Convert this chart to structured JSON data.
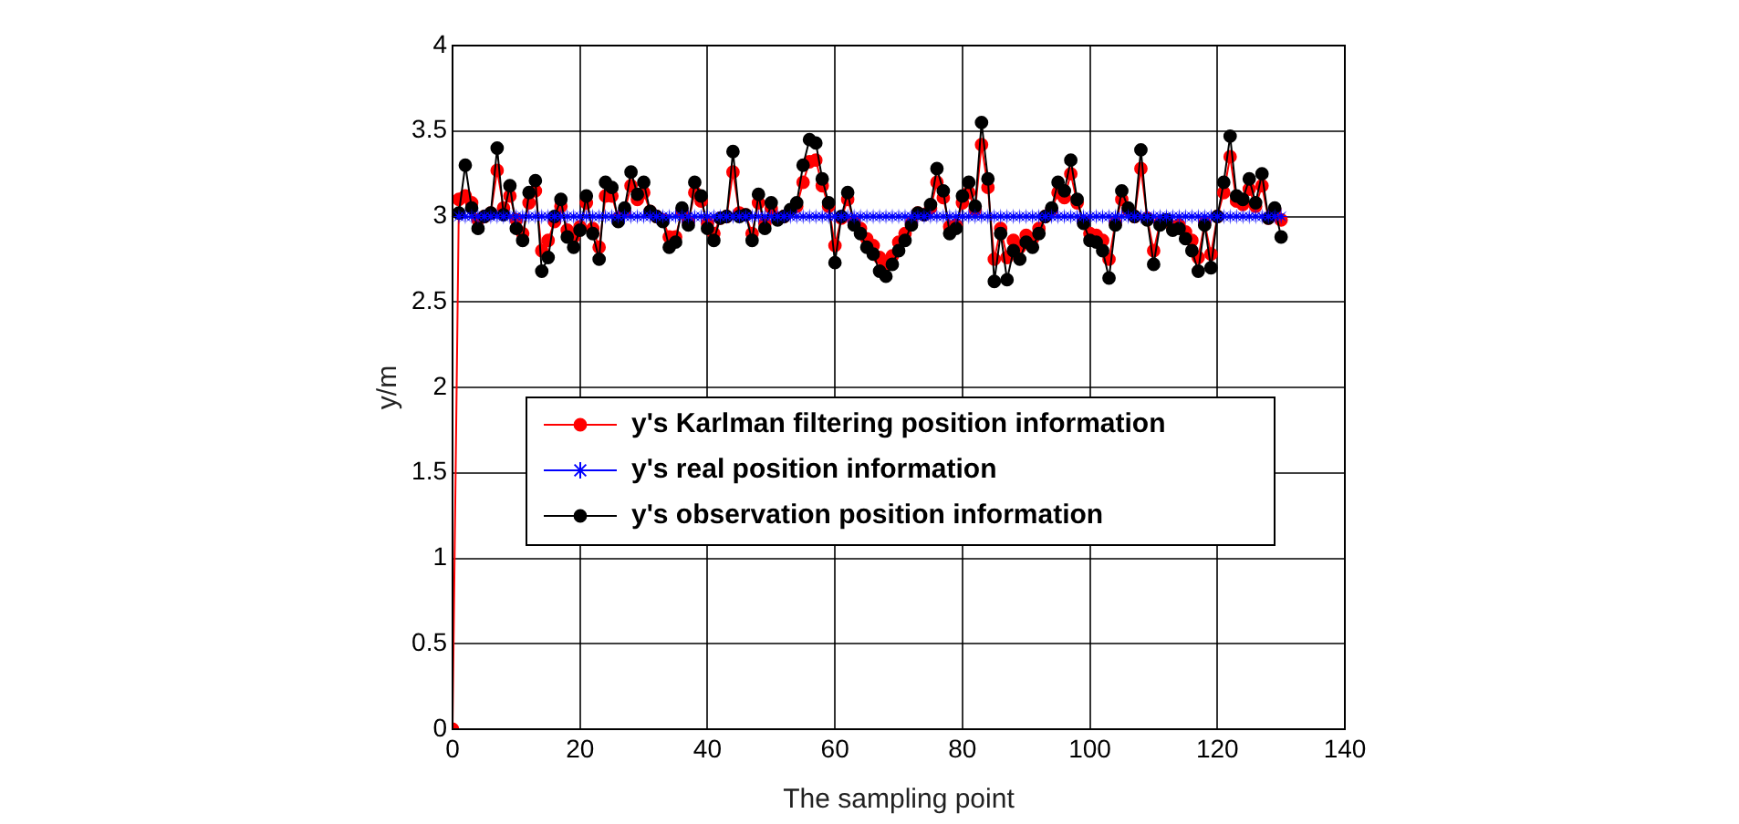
{
  "chart_data": {
    "type": "line",
    "xlabel": "The sampling point",
    "ylabel": "y/m",
    "xlim": [
      0,
      140
    ],
    "xticks": [
      0,
      20,
      40,
      60,
      80,
      100,
      120,
      140
    ],
    "ylim": [
      0,
      4
    ],
    "yticks": [
      0,
      0.5,
      1,
      1.5,
      2,
      2.5,
      3,
      3.5,
      4
    ],
    "grid": true,
    "legend": "center left",
    "line_style": "solid",
    "x": [
      1,
      2,
      3,
      4,
      5,
      6,
      7,
      8,
      9,
      10,
      11,
      12,
      13,
      14,
      15,
      16,
      17,
      18,
      19,
      20,
      21,
      22,
      23,
      24,
      25,
      26,
      27,
      28,
      29,
      30,
      31,
      32,
      33,
      34,
      35,
      36,
      37,
      38,
      39,
      40,
      41,
      42,
      43,
      44,
      45,
      46,
      47,
      48,
      49,
      50,
      51,
      52,
      53,
      54,
      55,
      56,
      57,
      58,
      59,
      60,
      61,
      62,
      63,
      64,
      65,
      66,
      67,
      68,
      69,
      70,
      71,
      72,
      73,
      74,
      75,
      76,
      77,
      78,
      79,
      80,
      81,
      82,
      83,
      84,
      85,
      86,
      87,
      88,
      89,
      90,
      91,
      92,
      93,
      94,
      95,
      96,
      97,
      98,
      99,
      100,
      101,
      102,
      103,
      104,
      105,
      106,
      107,
      108,
      109,
      110,
      111,
      112,
      113,
      114,
      115,
      116,
      117,
      118,
      119,
      120,
      121,
      122,
      123,
      124,
      125,
      126,
      127,
      128,
      129,
      130
    ],
    "series": [
      {
        "name": "y's Karlman filtering position information",
        "color": "#ff0000",
        "marker": "circle",
        "x": [
          0,
          1,
          2,
          3,
          4,
          5,
          6,
          7,
          8,
          9,
          10,
          11,
          12,
          13,
          14,
          15,
          16,
          17,
          18,
          19,
          20,
          21,
          22,
          23,
          24,
          25,
          26,
          27,
          28,
          29,
          30,
          31,
          32,
          33,
          34,
          35,
          36,
          37,
          38,
          39,
          40,
          41,
          42,
          43,
          44,
          45,
          46,
          47,
          48,
          49,
          50,
          51,
          52,
          53,
          54,
          55,
          56,
          57,
          58,
          59,
          60,
          61,
          62,
          63,
          64,
          65,
          66,
          67,
          68,
          69,
          70,
          71,
          72,
          73,
          74,
          75,
          76,
          77,
          78,
          79,
          80,
          81,
          82,
          83,
          84,
          85,
          86,
          87,
          88,
          89,
          90,
          91,
          92,
          93,
          94,
          95,
          96,
          97,
          98,
          99,
          100,
          101,
          102,
          103,
          104,
          105,
          106,
          107,
          108,
          109,
          110,
          111,
          112,
          113,
          114,
          115,
          116,
          117,
          118,
          119,
          120,
          121,
          122,
          123,
          124,
          125,
          126,
          127,
          128,
          129,
          130
        ],
        "values": [
          0,
          3.1,
          3.12,
          3.08,
          2.98,
          3.0,
          3.02,
          3.27,
          3.05,
          3.12,
          2.98,
          2.9,
          3.08,
          3.15,
          2.8,
          2.86,
          2.97,
          3.06,
          2.92,
          2.88,
          2.94,
          3.08,
          2.93,
          2.82,
          3.12,
          3.12,
          2.99,
          3.03,
          3.18,
          3.1,
          3.14,
          3.03,
          3.0,
          2.98,
          2.88,
          2.88,
          3.03,
          2.97,
          3.14,
          3.09,
          2.96,
          2.9,
          2.99,
          3.0,
          3.26,
          3.02,
          3.01,
          2.9,
          3.08,
          2.96,
          3.05,
          2.99,
          3.0,
          null,
          3.06,
          3.2,
          3.32,
          3.33,
          3.18,
          3.06,
          2.83,
          2.99,
          3.1,
          2.97,
          2.93,
          2.87,
          2.83,
          2.76,
          2.72,
          2.77,
          2.85,
          2.9,
          2.96,
          3.02,
          3.01,
          3.05,
          3.2,
          3.11,
          2.94,
          2.95,
          3.08,
          3.14,
          3.04,
          3.42,
          3.17,
          2.75,
          2.93,
          2.76,
          2.86,
          2.82,
          2.89,
          2.87,
          2.93,
          3.0,
          3.04,
          3.14,
          3.11,
          3.25,
          3.08,
          2.97,
          2.9,
          2.89,
          2.86,
          2.75,
          2.96,
          3.1,
          3.04,
          3.0,
          3.28,
          2.99,
          2.8,
          2.96,
          null,
          2.94,
          2.95,
          2.91,
          2.86,
          2.76,
          2.96,
          2.78,
          3.0,
          3.14,
          3.35,
          3.09,
          3.07,
          3.16,
          3.06,
          3.18,
          2.99,
          3.04,
          2.98
        ]
      },
      {
        "name": "y's real position information",
        "color": "#0000ff",
        "marker": "star",
        "values": [
          3,
          3,
          3,
          3,
          3,
          3,
          3,
          3,
          3,
          3,
          3,
          3,
          3,
          3,
          3,
          3,
          3,
          3,
          3,
          3,
          3,
          3,
          3,
          3,
          3,
          3,
          3,
          3,
          3,
          3,
          3,
          3,
          3,
          3,
          3,
          3,
          3,
          3,
          3,
          3,
          3,
          3,
          3,
          3,
          3,
          3,
          3,
          3,
          3,
          3,
          3,
          3,
          3,
          3,
          3,
          3,
          3,
          3,
          3,
          3,
          3,
          3,
          3,
          3,
          3,
          3,
          3,
          3,
          3,
          3,
          3,
          3,
          3,
          3,
          3,
          3,
          3,
          3,
          3,
          3,
          3,
          3,
          3,
          3,
          3,
          3,
          3,
          3,
          3,
          3,
          3,
          3,
          3,
          3,
          3,
          3,
          3,
          3,
          3,
          3,
          3,
          3,
          3,
          3,
          3,
          3,
          3,
          3,
          3,
          3,
          3,
          3,
          3,
          3,
          3,
          3,
          3,
          3,
          3,
          3,
          3,
          3,
          3,
          3,
          3,
          3,
          3,
          3,
          3,
          3
        ]
      },
      {
        "name": "y's observation position information",
        "color": "#000000",
        "marker": "circle",
        "values": [
          3.02,
          3.3,
          3.05,
          2.93,
          3.0,
          3.02,
          3.4,
          3.01,
          3.18,
          2.93,
          2.86,
          3.14,
          3.21,
          2.68,
          2.76,
          3.0,
          3.1,
          2.88,
          2.82,
          2.92,
          3.12,
          2.9,
          2.75,
          3.2,
          3.17,
          2.97,
          3.05,
          3.26,
          3.13,
          3.2,
          3.03,
          3.0,
          2.97,
          2.82,
          2.85,
          3.05,
          2.95,
          3.2,
          3.12,
          2.93,
          2.86,
          2.99,
          3.0,
          3.38,
          3.0,
          3.01,
          2.86,
          3.13,
          2.93,
          3.08,
          2.98,
          3.0,
          3.04,
          3.08,
          3.3,
          3.45,
          3.43,
          3.22,
          3.08,
          2.73,
          3.0,
          3.14,
          2.95,
          2.9,
          2.82,
          2.78,
          2.68,
          2.65,
          2.72,
          2.8,
          2.86,
          2.95,
          3.02,
          3.01,
          3.07,
          3.28,
          3.15,
          2.9,
          2.93,
          3.12,
          3.2,
          3.06,
          3.55,
          3.22,
          2.62,
          2.9,
          2.63,
          2.8,
          2.75,
          2.85,
          2.82,
          2.9,
          3.0,
          3.05,
          3.2,
          3.15,
          3.33,
          3.1,
          2.96,
          2.86,
          2.85,
          2.8,
          2.64,
          2.95,
          3.15,
          3.05,
          3.0,
          3.39,
          2.98,
          2.72,
          2.95,
          2.98,
          2.92,
          2.93,
          2.87,
          2.8,
          2.68,
          2.95,
          2.7,
          3.0,
          3.2,
          3.47,
          3.12,
          3.1,
          3.22,
          3.08,
          3.25,
          2.99,
          3.05,
          2.88
        ]
      }
    ]
  }
}
